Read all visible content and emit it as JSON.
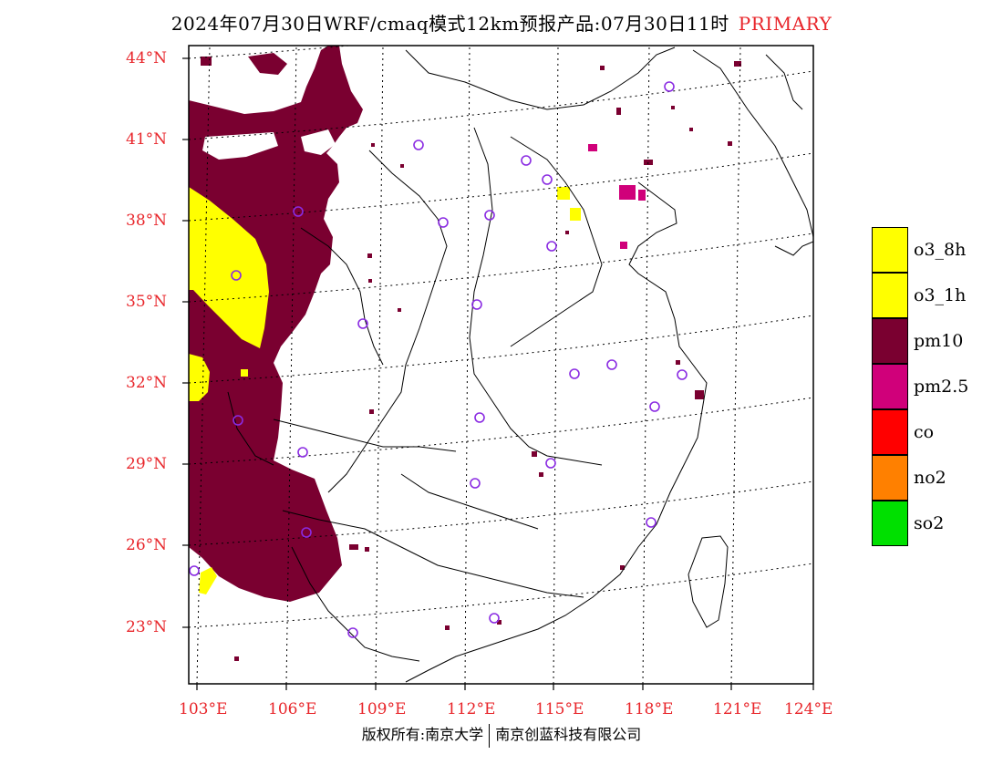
{
  "title": {
    "text": "2024年07月30日WRF/cmaq模式12km预报产品:07月30日11时",
    "tag": "PRIMARY"
  },
  "axes": {
    "lat_labels": [
      "44°N",
      "41°N",
      "38°N",
      "35°N",
      "32°N",
      "29°N",
      "26°N",
      "23°N"
    ],
    "lon_labels": [
      "103°E",
      "106°E",
      "109°E",
      "112°E",
      "115°E",
      "118°E",
      "121°E",
      "124°E"
    ]
  },
  "legend": {
    "items": [
      {
        "label": "o3_8h",
        "color": "#ffff00"
      },
      {
        "label": "o3_1h",
        "color": "#ffff00"
      },
      {
        "label": "pm10",
        "color": "#7a0030"
      },
      {
        "label": "pm2.5",
        "color": "#d0007a"
      },
      {
        "label": "co",
        "color": "#ff0000"
      },
      {
        "label": "no2",
        "color": "#ff8000"
      },
      {
        "label": "so2",
        "color": "#00e000"
      }
    ]
  },
  "colors": {
    "pm10": "#7a0030",
    "pm25": "#d0007a",
    "o3": "#ffff00",
    "station": "#8a2be2",
    "axis_label": "#e8252a"
  },
  "footer": {
    "left": "版权所有:南京大学",
    "right": "南京创蓝科技有限公司"
  }
}
